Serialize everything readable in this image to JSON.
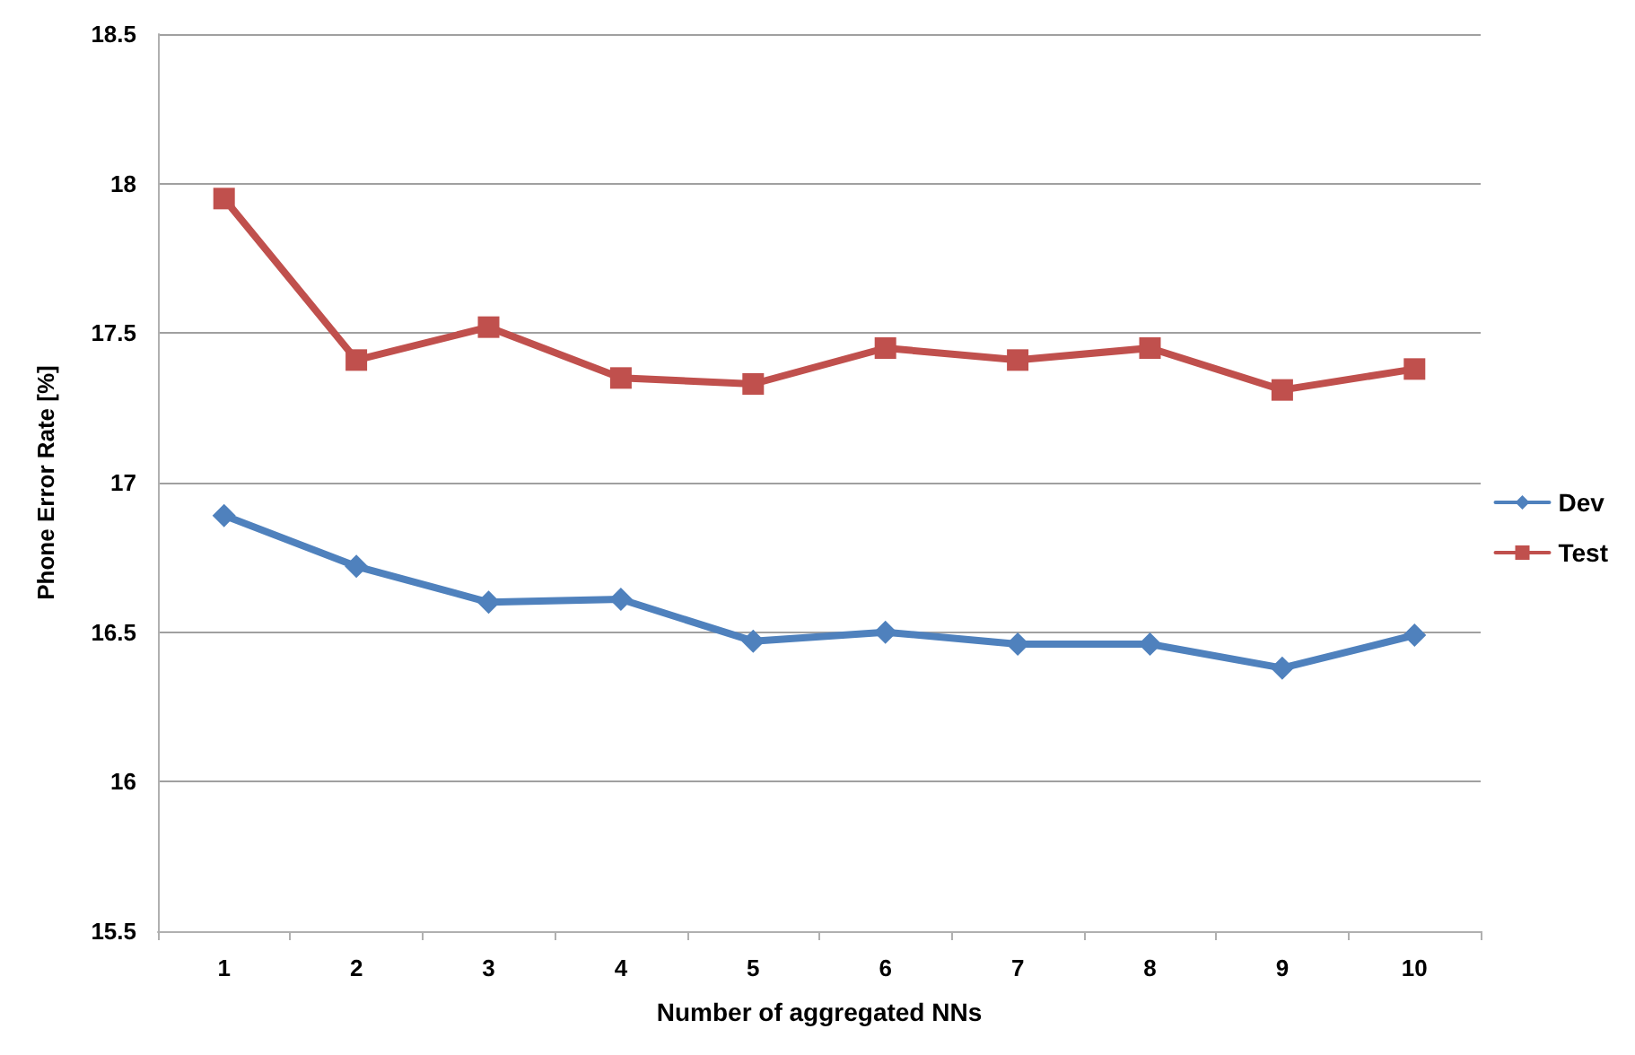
{
  "chart_data": {
    "type": "line",
    "xlabel": "Number of aggregated NNs",
    "ylabel": "Phone Error Rate [%]",
    "categories": [
      "1",
      "2",
      "3",
      "4",
      "5",
      "6",
      "7",
      "8",
      "9",
      "10"
    ],
    "series": [
      {
        "name": "Dev",
        "color": "#4f81bd",
        "marker": "diamond",
        "values": [
          16.89,
          16.72,
          16.6,
          16.61,
          16.47,
          16.5,
          16.46,
          16.46,
          16.38,
          16.49
        ]
      },
      {
        "name": "Test",
        "color": "#c0504d",
        "marker": "square",
        "values": [
          17.95,
          17.41,
          17.52,
          17.35,
          17.33,
          17.45,
          17.41,
          17.45,
          17.31,
          17.38
        ]
      }
    ],
    "ylim": [
      15.5,
      18.5
    ],
    "yticks": [
      15.5,
      16,
      16.5,
      17,
      17.5,
      18,
      18.5
    ],
    "grid": "y",
    "legend": "right",
    "line_style": "solid"
  }
}
